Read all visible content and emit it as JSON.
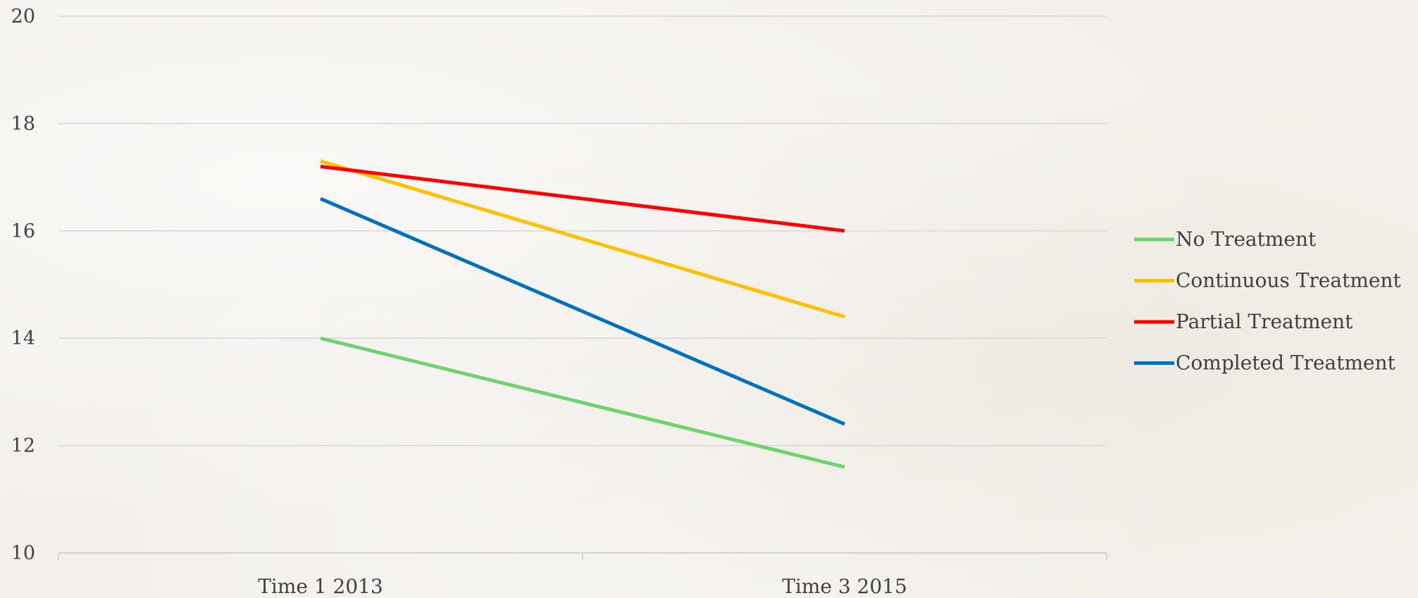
{
  "chart_data": {
    "type": "line",
    "categories": [
      "Time 1  2013",
      "Time 3  2015"
    ],
    "series": [
      {
        "name": "No Treatment",
        "color": "#6ed36e",
        "values": [
          14.0,
          11.6
        ]
      },
      {
        "name": "Continuous Treatment",
        "color": "#ffc000",
        "values": [
          17.3,
          14.4
        ]
      },
      {
        "name": "Partial Treatment",
        "color": "#ff0000",
        "values": [
          17.2,
          16.0
        ]
      },
      {
        "name": "Completed Treatment",
        "color": "#0070c0",
        "values": [
          16.6,
          12.4
        ]
      }
    ],
    "yticks": [
      "10",
      "12",
      "14",
      "16",
      "18",
      "20"
    ],
    "ylim": [
      10,
      20
    ],
    "grid": true,
    "legend_position": "right"
  }
}
